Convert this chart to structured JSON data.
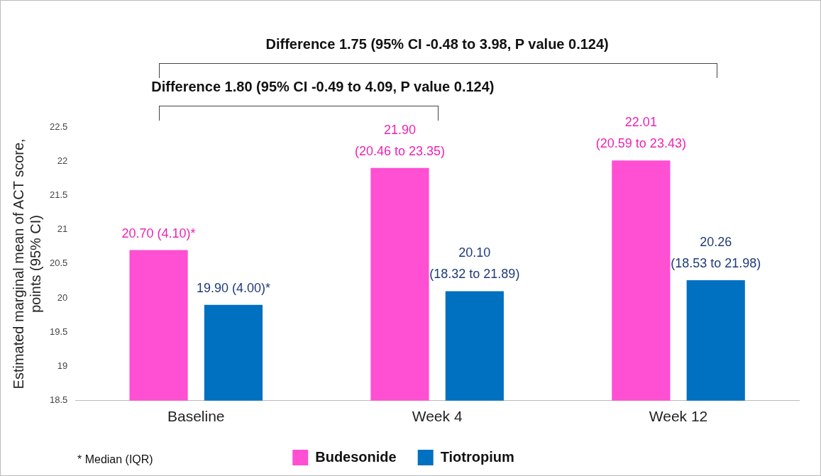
{
  "chart_data": {
    "type": "bar",
    "ylabel": "Estimated marginal mean of ACT score, points (95% CI)",
    "categories": [
      "Baseline",
      "Week 4",
      "Week 12"
    ],
    "series": [
      {
        "name": "Budesonide",
        "color": "#ff4fd2",
        "values": [
          20.7,
          21.9,
          22.01
        ],
        "value_labels": [
          "20.70 (4.10)*",
          "21.90 (20.46 to 23.35)",
          "22.01 (20.59 to 23.43)"
        ]
      },
      {
        "name": "Tiotropium",
        "color": "#0070c0",
        "values": [
          19.9,
          20.1,
          20.26
        ],
        "value_labels": [
          "19.90 (4.00)*",
          "20.10 (18.32 to 21.89)",
          "20.26 (18.53 to 21.98)"
        ]
      }
    ],
    "ylim": [
      18.5,
      22.5
    ],
    "yticks": [
      18.5,
      19,
      19.5,
      20,
      20.5,
      21,
      21.5,
      22,
      22.5
    ],
    "grid": false,
    "legend": "bottom",
    "annotations": [
      "Difference 1.75 (95% CI -0.48 to 3.98, P value 0.124)",
      "Difference 1.80 (95% CI -0.49 to 4.09, P value 0.124)",
      "* Median (IQR)"
    ]
  }
}
